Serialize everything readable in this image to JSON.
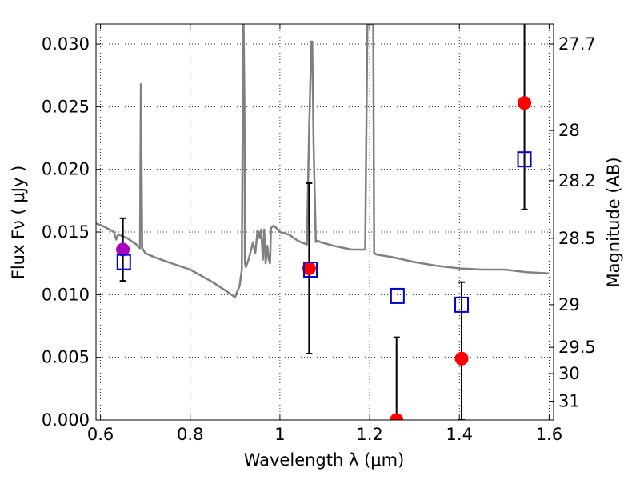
{
  "chart_data": {
    "type": "scatter",
    "title": "",
    "xlabel": "Wavelength  λ (μm)",
    "ylabel": "Flux  Fν  ( μJy )",
    "y2label": "Magnitude (AB)",
    "xlim": [
      0.59,
      1.61
    ],
    "ylim": [
      0.0,
      0.0316
    ],
    "grid": true,
    "xticks": [
      {
        "value": 0.6,
        "label": "0.6"
      },
      {
        "value": 0.8,
        "label": "0.8"
      },
      {
        "value": 1.0,
        "label": "1"
      },
      {
        "value": 1.2,
        "label": "1.2"
      },
      {
        "value": 1.4,
        "label": "1.4"
      },
      {
        "value": 1.6,
        "label": "1.6"
      }
    ],
    "yticks": [
      {
        "value": 0.0,
        "label": "0.000"
      },
      {
        "value": 0.005,
        "label": "0.005"
      },
      {
        "value": 0.01,
        "label": "0.010"
      },
      {
        "value": 0.015,
        "label": "0.015"
      },
      {
        "value": 0.02,
        "label": "0.020"
      },
      {
        "value": 0.025,
        "label": "0.025"
      },
      {
        "value": 0.03,
        "label": "0.030"
      }
    ],
    "y2ticks": [
      {
        "flux": 0.03,
        "label": "27.7"
      },
      {
        "flux": 0.0231,
        "label": "28"
      },
      {
        "flux": 0.0191,
        "label": "28.2"
      },
      {
        "flux": 0.0145,
        "label": "28.5"
      },
      {
        "flux": 0.0092,
        "label": "29"
      },
      {
        "flux": 0.0058,
        "label": "29.5"
      },
      {
        "flux": 0.0037,
        "label": "30"
      },
      {
        "flux": 0.0015,
        "label": "31"
      }
    ],
    "series": [
      {
        "name": "model-spectrum",
        "kind": "line",
        "color": "#808080",
        "x": [
          0.59,
          0.61,
          0.63,
          0.635,
          0.64,
          0.66,
          0.68,
          0.688,
          0.69,
          0.693,
          0.695,
          0.7,
          0.72,
          0.75,
          0.8,
          0.85,
          0.88,
          0.9,
          0.91,
          0.915,
          0.917,
          0.918,
          0.919,
          0.921,
          0.922,
          0.924,
          0.93,
          0.94,
          0.945,
          0.95,
          0.952,
          0.955,
          0.958,
          0.962,
          0.965,
          0.968,
          0.972,
          0.975,
          0.978,
          0.98,
          0.985,
          0.99,
          0.995,
          1.0,
          1.02,
          1.04,
          1.06,
          1.065,
          1.07,
          1.072,
          1.075,
          1.08,
          1.085,
          1.09,
          1.12,
          1.16,
          1.19,
          1.195,
          1.2,
          1.205,
          1.208,
          1.21,
          1.212,
          1.215,
          1.25,
          1.3,
          1.35,
          1.4,
          1.45,
          1.5,
          1.55,
          1.6
        ],
        "y": [
          0.0157,
          0.0154,
          0.015,
          0.0144,
          0.0148,
          0.0145,
          0.014,
          0.0137,
          0.0268,
          0.0137,
          0.0136,
          0.0133,
          0.013,
          0.0126,
          0.012,
          0.011,
          0.0103,
          0.0098,
          0.0107,
          0.012,
          0.025,
          0.0316,
          0.0316,
          0.025,
          0.0125,
          0.0122,
          0.0128,
          0.0142,
          0.0133,
          0.0151,
          0.015,
          0.0145,
          0.0152,
          0.0128,
          0.0152,
          0.0125,
          0.0139,
          0.0128,
          0.0125,
          0.0153,
          0.0155,
          0.0154,
          0.0152,
          0.015,
          0.0148,
          0.0143,
          0.014,
          0.023,
          0.0302,
          0.0302,
          0.022,
          0.0142,
          0.0143,
          0.0142,
          0.0139,
          0.0136,
          0.0136,
          0.0316,
          0.0316,
          0.0316,
          0.0316,
          0.0133,
          0.0133,
          0.0132,
          0.013,
          0.0126,
          0.0123,
          0.0121,
          0.012,
          0.012,
          0.0118,
          0.0117
        ]
      },
      {
        "name": "observed-flux",
        "kind": "points-with-errorbars",
        "color": "#ff0000",
        "points": [
          {
            "x": 1.065,
            "y": 0.0121,
            "err": 0.0068
          },
          {
            "x": 1.26,
            "y": 0.0,
            "err": 0.0066
          },
          {
            "x": 1.405,
            "y": 0.0049,
            "err": 0.0061
          },
          {
            "x": 1.545,
            "y": 0.0253,
            "err": 0.0085
          }
        ]
      },
      {
        "name": "observed-flux-v-band",
        "kind": "points-with-errorbars",
        "color": "#aa00bb",
        "points": [
          {
            "x": 0.65,
            "y": 0.0136,
            "err": 0.0025
          }
        ]
      },
      {
        "name": "model-synthetic-flux",
        "kind": "open-squares",
        "color": "#0000cc",
        "points": [
          {
            "x": 0.652,
            "y": 0.0126
          },
          {
            "x": 1.068,
            "y": 0.012
          },
          {
            "x": 1.262,
            "y": 0.0099
          },
          {
            "x": 1.405,
            "y": 0.0092
          },
          {
            "x": 1.545,
            "y": 0.0208
          }
        ]
      }
    ]
  }
}
